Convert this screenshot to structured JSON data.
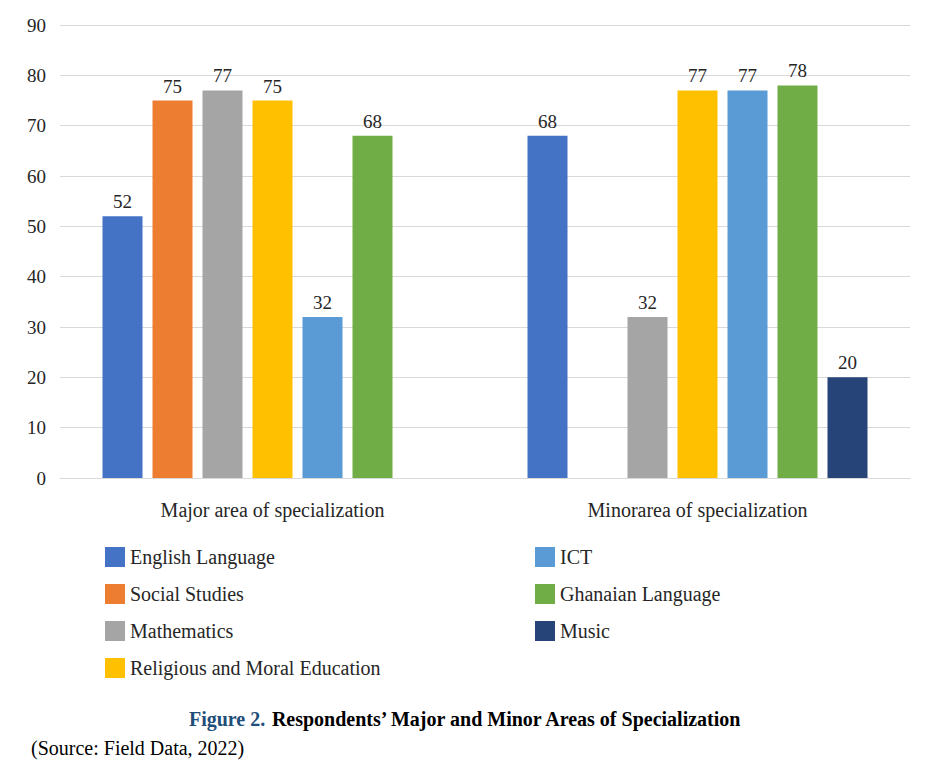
{
  "chart_data": {
    "type": "bar",
    "title": "Figure 2. Respondents’ Major and Minor Areas of Specialization",
    "subtitle": "(Source: Field Data, 2022)",
    "categories": [
      "Major area of specialization",
      "Minorarea of specialization"
    ],
    "series": [
      {
        "name": "English Language",
        "color": "#4472c4",
        "values": [
          52,
          68
        ]
      },
      {
        "name": "Social Studies",
        "color": "#ed7d31",
        "values": [
          75,
          null
        ]
      },
      {
        "name": "Mathematics",
        "color": "#a5a5a5",
        "values": [
          77,
          32
        ]
      },
      {
        "name": "Religious and Moral Education",
        "color": "#ffc000",
        "values": [
          75,
          77
        ]
      },
      {
        "name": "ICT",
        "color": "#5b9bd5",
        "values": [
          32,
          77
        ]
      },
      {
        "name": "Ghanaian Language",
        "color": "#70ad47",
        "values": [
          68,
          78
        ]
      },
      {
        "name": "Music",
        "color": "#264478",
        "values": [
          null,
          20
        ]
      }
    ],
    "ylim": [
      0,
      90
    ],
    "yticks": [
      0,
      10,
      20,
      30,
      40,
      50,
      60,
      70,
      80,
      90
    ],
    "grid": true,
    "legend": "bottom",
    "data_labels": true
  }
}
